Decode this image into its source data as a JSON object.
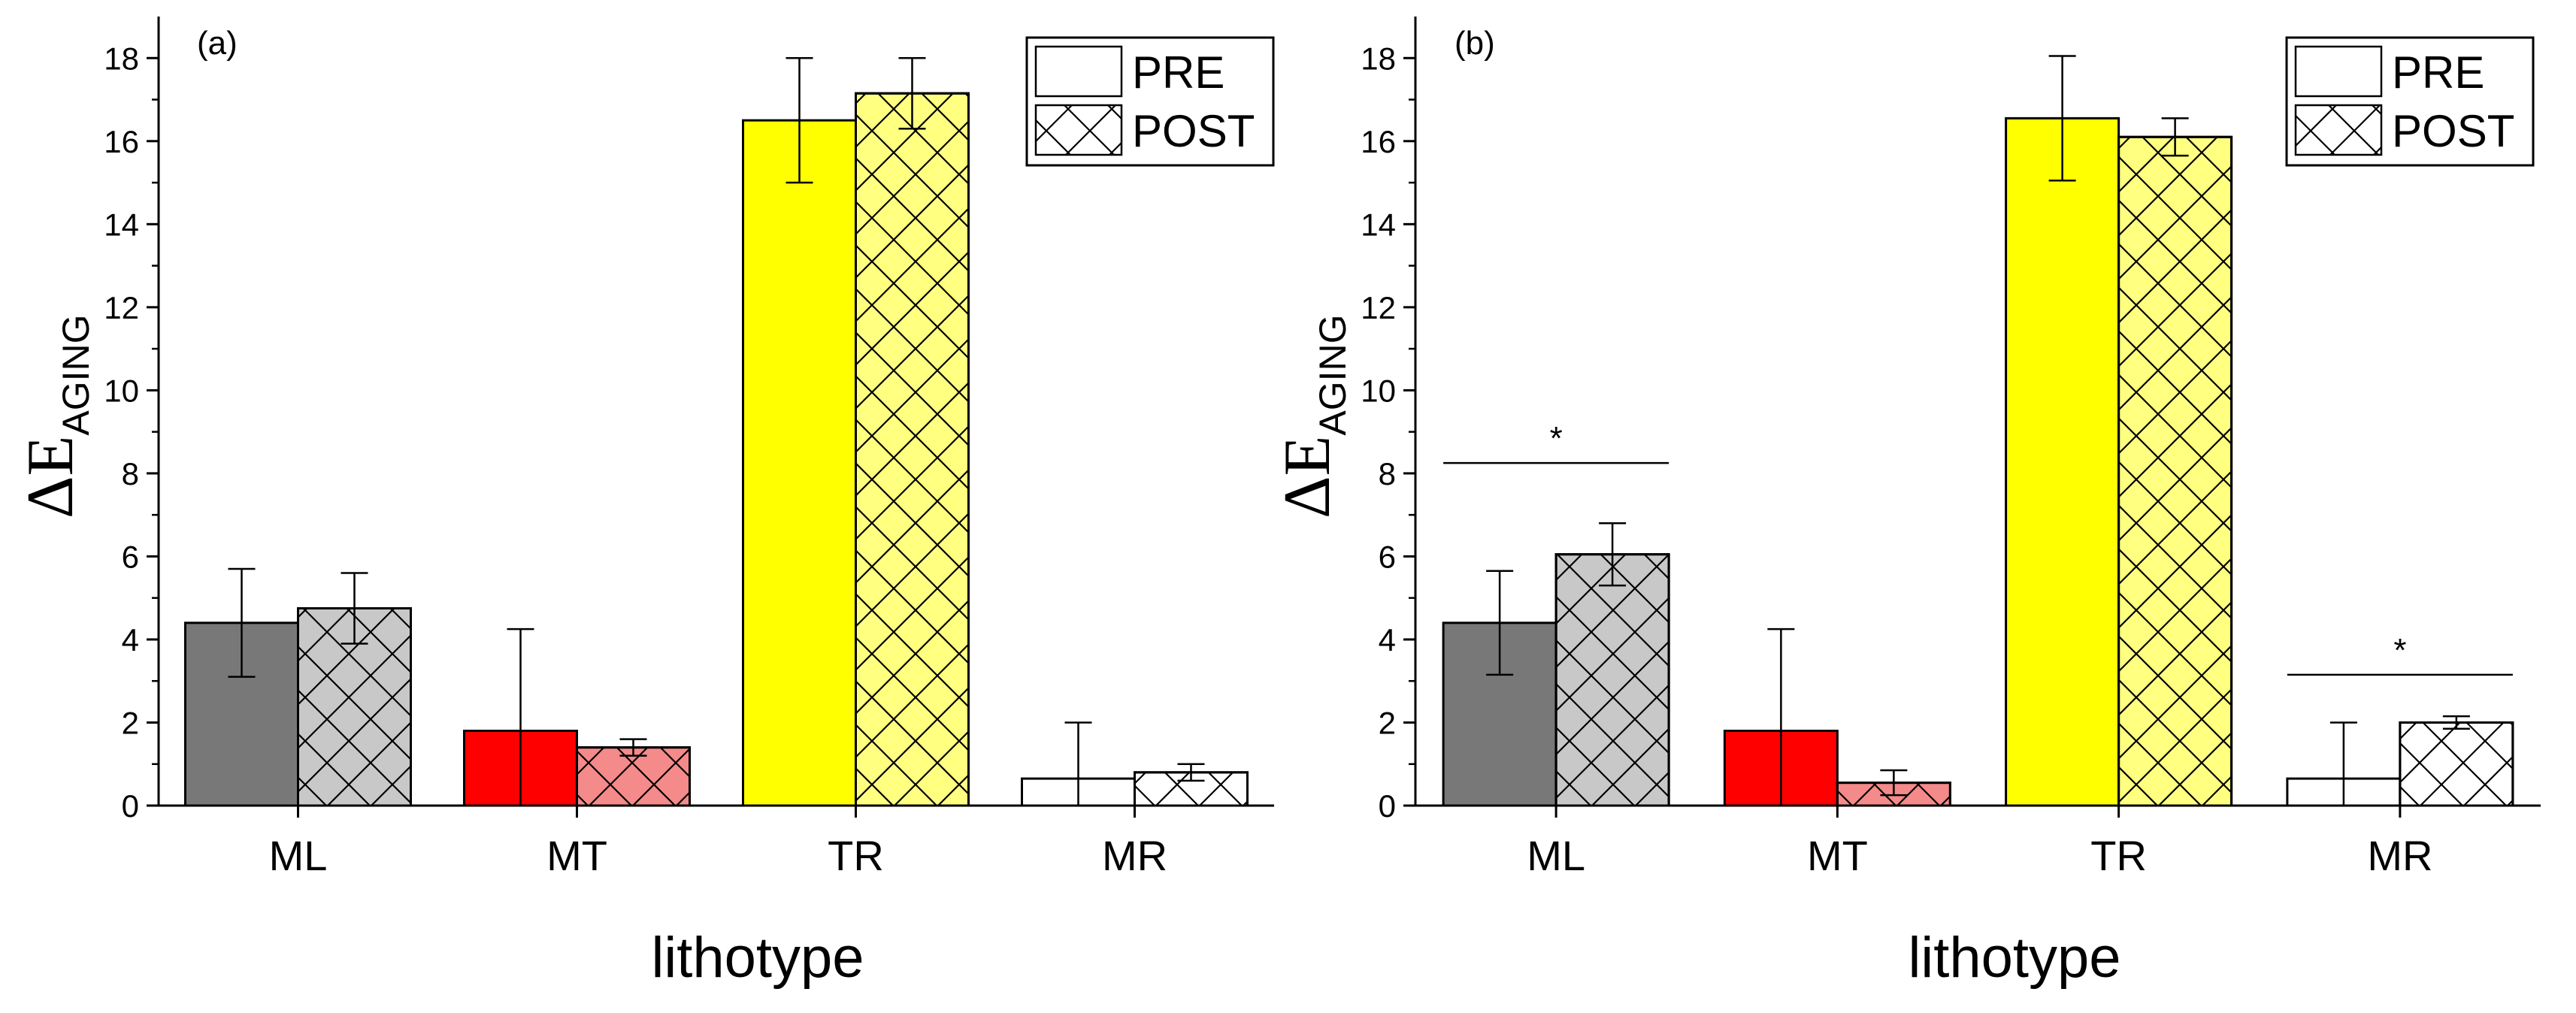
{
  "colors": {
    "ML": {
      "pre": "#787878",
      "post": "#c8c8c8"
    },
    "MT": {
      "pre": "#ff0000",
      "post": "#f58a8a"
    },
    "TR": {
      "pre": "#ffff00",
      "post": "#ffff80"
    },
    "MR": {
      "pre": "#ffffff",
      "post": "#ffffff"
    }
  },
  "chart_data": [
    {
      "type": "bar",
      "panel_label": "(a)",
      "categories": [
        "ML",
        "MT",
        "TR",
        "MR"
      ],
      "series": [
        {
          "name": "PRE",
          "values": [
            4.4,
            1.8,
            16.5,
            0.65
          ],
          "errors": [
            1.3,
            2.45,
            1.5,
            1.35
          ]
        },
        {
          "name": "POST",
          "values": [
            4.75,
            1.4,
            17.15,
            0.8
          ],
          "errors": [
            0.85,
            0.2,
            0.85,
            0.2
          ]
        }
      ],
      "xlabel": "lithotype",
      "ylabel": "ΔE",
      "ylabel_sub": "AGING",
      "ylim": [
        0,
        19
      ],
      "yticks": [
        0,
        2,
        4,
        6,
        8,
        10,
        12,
        14,
        16,
        18
      ],
      "legend": [
        "PRE",
        "POST"
      ],
      "legend_position": "top-right",
      "significance": []
    },
    {
      "type": "bar",
      "panel_label": "(b)",
      "categories": [
        "ML",
        "MT",
        "TR",
        "MR"
      ],
      "series": [
        {
          "name": "PRE",
          "values": [
            4.4,
            1.8,
            16.55,
            0.65
          ],
          "errors": [
            1.25,
            2.45,
            1.5,
            1.35
          ]
        },
        {
          "name": "POST",
          "values": [
            6.05,
            0.55,
            16.1,
            2.0
          ],
          "errors": [
            0.75,
            0.3,
            0.45,
            0.15
          ]
        }
      ],
      "xlabel": "lithotype",
      "ylabel": "ΔE",
      "ylabel_sub": "AGING",
      "ylim": [
        0,
        19
      ],
      "yticks": [
        0,
        2,
        4,
        6,
        8,
        10,
        12,
        14,
        16,
        18
      ],
      "legend": [
        "PRE",
        "POST"
      ],
      "legend_position": "top-right",
      "significance": [
        {
          "category": "ML",
          "level": 8.25,
          "label": "*"
        },
        {
          "category": "MR",
          "level": 3.15,
          "label": "*"
        }
      ]
    }
  ]
}
